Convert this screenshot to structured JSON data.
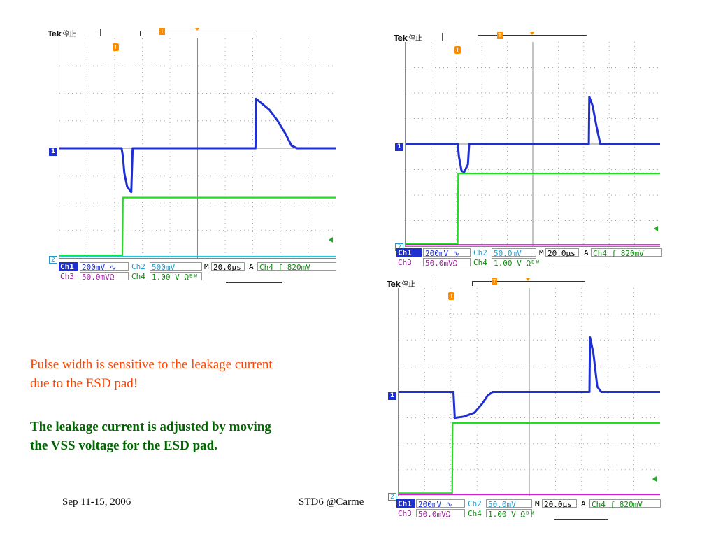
{
  "scopes": [
    {
      "id": "scope1",
      "brand": "Tek",
      "state": "停止",
      "trigger_letter": "T",
      "ch1_marker": "1",
      "ch2_marker": "2",
      "status": {
        "ch1": "Ch1",
        "ch1_scale": "200mV ∿",
        "ch2": "Ch2",
        "ch2_scale": "500mV",
        "m": "M",
        "m_scale": "20.0μs",
        "a": "A",
        "trig": "Ch4 ʃ  820mV",
        "ch3": "Ch3",
        "ch3_scale": "50.0mVΩ",
        "ch4": "Ch4",
        "ch4_scale": "1.00 V Ωᴮᵂ"
      }
    },
    {
      "id": "scope2",
      "brand": "Tek",
      "state": "停止",
      "trigger_letter": "T",
      "ch1_marker": "1",
      "ch2_marker": "2",
      "status": {
        "ch1": "Ch1",
        "ch1_scale": "200mV ∿",
        "ch2": "Ch2",
        "ch2_scale": "50.0mV",
        "m": "M",
        "m_scale": "20.0μs",
        "a": "A",
        "trig": "Ch4 ʃ  820mV",
        "ch3": "Ch3",
        "ch3_scale": "50.0mVΩ",
        "ch4": "Ch4",
        "ch4_scale": "1.00 V Ωᴮᵂ"
      }
    },
    {
      "id": "scope3",
      "brand": "Tek",
      "state": "停止",
      "trigger_letter": "T",
      "ch1_marker": "1",
      "ch2_marker": "2",
      "status": {
        "ch1": "Ch1",
        "ch1_scale": "200mV ∿",
        "ch2": "Ch2",
        "ch2_scale": "50.0mV",
        "m": "M",
        "m_scale": "20.0μs",
        "a": "A",
        "trig": "Ch4 ʃ  820mV",
        "ch3": "Ch3",
        "ch3_scale": "50.0mVΩ",
        "ch4": "Ch4",
        "ch4_scale": "1.00 V Ωᴮᵂ"
      }
    }
  ],
  "notes": {
    "red_line1": "Pulse width is sensitive to the leakage current",
    "red_line2": "due to the ESD pad!",
    "green_line1": "The leakage current is adjusted by moving",
    "green_line2": "the VSS voltage for the ESD pad."
  },
  "footer": {
    "date": "Sep 11-15, 2006",
    "venue": "STD6 @Carme"
  },
  "colors": {
    "ch1": "#1f2fd0",
    "ch2": "#1fc8e0",
    "ch3": "#d020d0",
    "ch4": "#22dd22",
    "trigger": "#ff8c00"
  },
  "chart_data": [
    {
      "type": "line",
      "title": "",
      "grid": true,
      "x_divisions": 10,
      "y_divisions": 8,
      "series": [
        {
          "channel": "Ch1",
          "color": "#1f2fd0",
          "x": [
            0,
            2.25,
            2.3,
            2.35,
            2.45,
            2.6,
            2.65,
            7.1,
            7.12,
            7.3,
            7.6,
            7.9,
            8.2,
            8.4,
            8.6,
            10
          ],
          "y": [
            4.0,
            4.0,
            3.7,
            3.1,
            2.6,
            2.4,
            4.0,
            4.0,
            5.8,
            5.65,
            5.4,
            5.0,
            4.5,
            4.1,
            4.0,
            4.0
          ]
        },
        {
          "channel": "Ch4",
          "color": "#22dd22",
          "x": [
            0,
            2.28,
            2.3,
            10
          ],
          "y": [
            0.1,
            0.1,
            2.2,
            2.2
          ]
        },
        {
          "channel": "Ch2",
          "color": "#1fc8e0",
          "x": [
            0,
            10
          ],
          "y": [
            0.05,
            0.05
          ]
        }
      ]
    },
    {
      "type": "line",
      "title": "",
      "grid": true,
      "x_divisions": 10,
      "y_divisions": 8,
      "series": [
        {
          "channel": "Ch1",
          "color": "#1f2fd0",
          "x": [
            0,
            2.05,
            2.1,
            2.2,
            2.3,
            2.45,
            2.5,
            7.2,
            7.22,
            7.35,
            7.5,
            7.65,
            10
          ],
          "y": [
            4.0,
            4.0,
            3.5,
            2.95,
            2.9,
            3.2,
            4.0,
            4.0,
            5.85,
            5.5,
            4.7,
            4.0,
            4.0
          ]
        },
        {
          "channel": "Ch4",
          "color": "#22dd22",
          "x": [
            0,
            2.05,
            2.07,
            10
          ],
          "y": [
            0.1,
            0.1,
            2.85,
            2.85
          ]
        },
        {
          "channel": "Ch3",
          "color": "#d020d0",
          "x": [
            0,
            10
          ],
          "y": [
            0.05,
            0.05
          ]
        }
      ]
    },
    {
      "type": "line",
      "title": "",
      "grid": true,
      "x_divisions": 10,
      "y_divisions": 8,
      "series": [
        {
          "channel": "Ch1",
          "color": "#1f2fd0",
          "x": [
            0,
            2.1,
            2.15,
            2.5,
            2.9,
            3.2,
            3.4,
            3.6,
            7.3,
            7.32,
            7.45,
            7.6,
            7.75,
            10
          ],
          "y": [
            4.0,
            4.0,
            3.0,
            3.05,
            3.2,
            3.55,
            3.85,
            4.0,
            4.0,
            6.1,
            5.5,
            4.2,
            4.0,
            4.0
          ]
        },
        {
          "channel": "Ch4",
          "color": "#22dd22",
          "x": [
            0,
            2.05,
            2.07,
            10
          ],
          "y": [
            0.1,
            0.1,
            2.8,
            2.8
          ]
        },
        {
          "channel": "Ch3",
          "color": "#d020d0",
          "x": [
            0,
            10
          ],
          "y": [
            0.05,
            0.05
          ]
        }
      ]
    }
  ]
}
